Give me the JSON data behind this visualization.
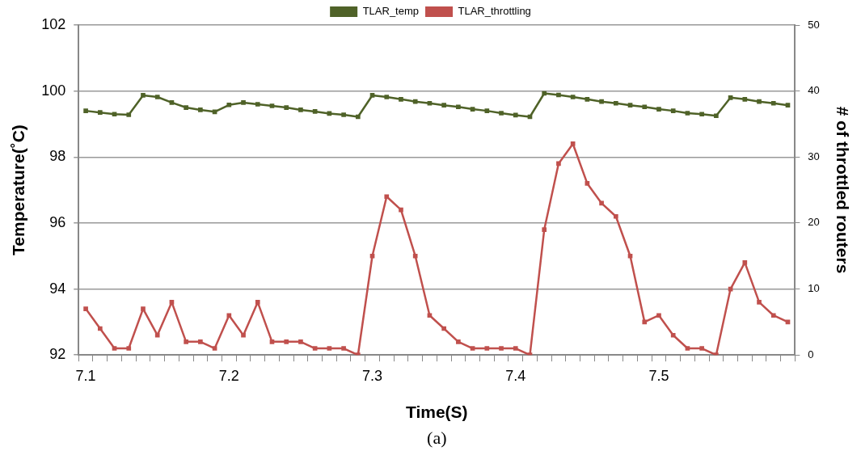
{
  "chart_data": {
    "type": "line",
    "categories": [
      "7.1",
      null,
      null,
      null,
      null,
      null,
      null,
      null,
      null,
      null,
      "7.2",
      null,
      null,
      null,
      null,
      null,
      null,
      null,
      null,
      null,
      "7.3",
      null,
      null,
      null,
      null,
      null,
      null,
      null,
      null,
      null,
      "7.4",
      null,
      null,
      null,
      null,
      null,
      null,
      null,
      null,
      null,
      "7.5",
      null,
      null,
      null,
      null,
      null,
      null,
      null,
      null,
      null
    ],
    "series": [
      {
        "name": "TLAR_temp",
        "color": "#4f6228",
        "values": [
          99.4,
          99.35,
          99.3,
          99.28,
          99.87,
          99.82,
          99.65,
          99.5,
          99.43,
          99.37,
          99.58,
          99.65,
          99.6,
          99.55,
          99.5,
          99.43,
          99.38,
          99.32,
          99.28,
          99.22,
          99.87,
          99.82,
          99.75,
          99.68,
          99.63,
          99.57,
          99.52,
          99.45,
          99.4,
          99.33,
          99.27,
          99.22,
          99.93,
          99.88,
          99.82,
          99.75,
          99.68,
          99.63,
          99.57,
          99.52,
          99.45,
          99.4,
          99.33,
          99.3,
          99.25,
          99.8,
          99.75,
          99.68,
          99.63,
          99.57
        ]
      },
      {
        "name": "TLAR_throttling",
        "color": "#c0504d",
        "axis": "y2",
        "values": [
          7,
          4,
          1,
          1,
          7,
          3,
          8,
          2,
          2,
          1,
          6,
          3,
          8,
          2,
          2,
          2,
          1,
          1,
          1,
          0,
          15,
          24,
          22,
          15,
          6,
          4,
          2,
          1,
          1,
          1,
          1,
          0,
          19,
          29,
          32,
          26,
          23,
          21,
          15,
          5,
          6,
          3,
          1,
          1,
          0,
          10,
          14,
          8,
          6,
          5
        ]
      }
    ],
    "xlabel": "Time(S)",
    "ylabel": "Temperature(˚C)",
    "y2label": "# of throttled routers",
    "annotations": [
      "(a)"
    ],
    "ylim": [
      92,
      102
    ],
    "yticks": [
      92,
      94,
      96,
      98,
      100,
      102
    ],
    "y2lim": [
      0,
      50
    ],
    "y2ticks": [
      0,
      10,
      20,
      30,
      40,
      50
    ],
    "grid": "y",
    "legend": "top",
    "marker": "square",
    "line_style": "solid"
  }
}
